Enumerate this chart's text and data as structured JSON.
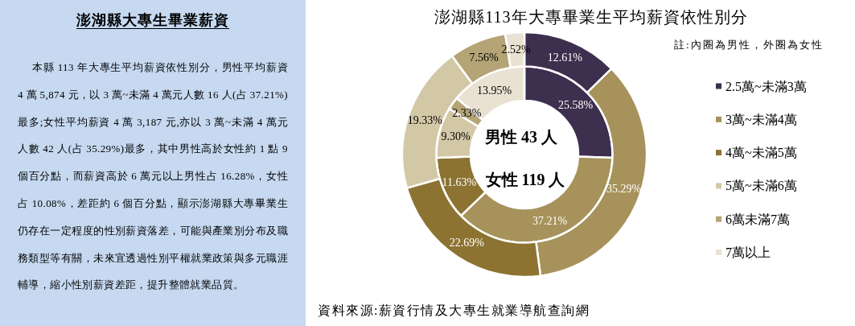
{
  "chart_data": [
    {
      "type": "other",
      "title": "澎湖縣大專生畢業薪資",
      "annotations": [
        "本縣 113 年大專生平均薪資依性別分，男性平均薪資 4 萬 5,874 元，以 3 萬~未滿 4 萬元人數 16 人(占 37.21%)最多;女性平均薪資 4 萬 3,187 元,亦以 3 萬~未滿 4 萬元人數 42 人(占 35.29%)最多，其中男性高於女性約 1 點 9 個百分點，而薪資高於 6 萬元以上男性占 16.28%，女性占 10.08%，差距約 6 個百分點，顯示澎湖縣大專畢業生仍存在一定程度的性別薪資落差，可能與產業別分布及職務類型等有關，未來宜透過性別平權就業政策與多元職涯輔導，縮小性別薪資差距，提升整體就業品質。"
      ]
    },
    {
      "type": "donut",
      "title": "澎湖縣113年大專畢業生平均薪資依性別分",
      "categories": [
        "2.5萬~未滿3萬",
        "3萬~未滿4萬",
        "4萬~未滿5萬",
        "5萬~未滿6萬",
        "6萬未滿7萬",
        "7萬以上"
      ],
      "colors": [
        "#3d2f4e",
        "#a6925a",
        "#8c7332",
        "#d3c8a6",
        "#b4a476",
        "#e9e2d2"
      ],
      "series": [
        {
          "values": [
            25.58,
            37.21,
            11.63,
            9.3,
            2.33,
            13.95
          ],
          "value_labels": [
            "25.58%",
            "37.21%",
            "11.63%",
            "9.30%",
            "2.33%",
            "13.95%"
          ]
        },
        {
          "values": [
            12.61,
            35.29,
            22.69,
            19.33,
            7.56,
            2.52
          ],
          "value_labels": [
            "12.61%",
            "35.29%",
            "22.69%",
            "19.33%",
            "7.56%",
            "2.52%"
          ]
        }
      ],
      "legend": "right",
      "annotations": [
        "男性 43 人",
        "女性 119 人",
        "註:內圈為男性，外圈為女性",
        "資料來源:薪資行情及大專生就業導航查詢網"
      ]
    }
  ]
}
